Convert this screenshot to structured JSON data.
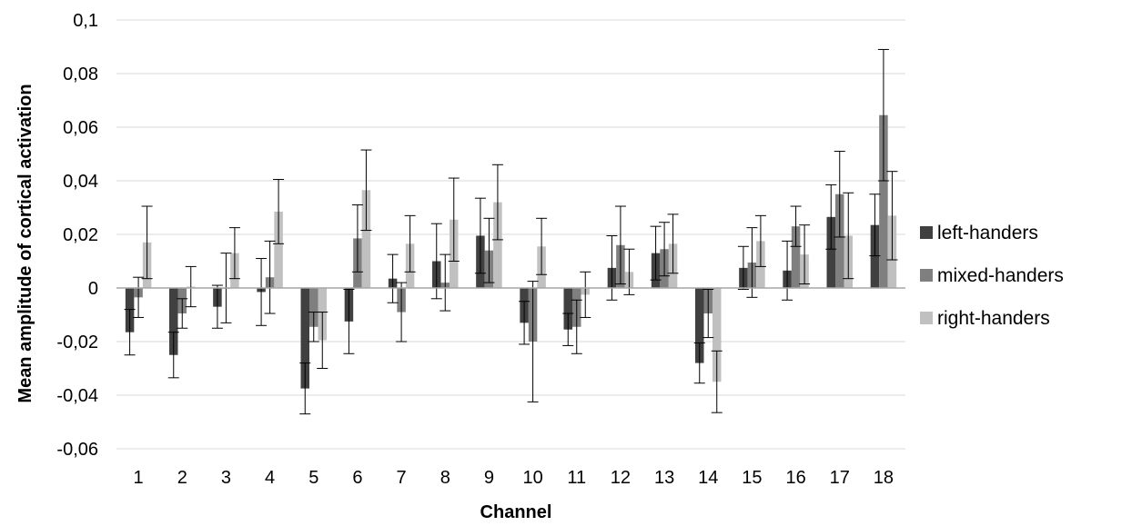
{
  "chart_data": {
    "type": "bar",
    "xlabel": "Channel",
    "ylabel": "Mean amplitude of cortical activation",
    "ylim": [
      -0.06,
      0.1
    ],
    "yticks": [
      {
        "value": 0.1,
        "label": "0,1"
      },
      {
        "value": 0.08,
        "label": "0,08"
      },
      {
        "value": 0.06,
        "label": "0,06"
      },
      {
        "value": 0.04,
        "label": "0,04"
      },
      {
        "value": 0.02,
        "label": "0,02"
      },
      {
        "value": 0,
        "label": "0"
      },
      {
        "value": -0.02,
        "label": "-0,02"
      },
      {
        "value": -0.04,
        "label": "-0,04"
      },
      {
        "value": -0.06,
        "label": "-0,06"
      }
    ],
    "categories": [
      "1",
      "2",
      "3",
      "4",
      "5",
      "6",
      "7",
      "8",
      "9",
      "10",
      "11",
      "12",
      "13",
      "14",
      "15",
      "16",
      "17",
      "18"
    ],
    "grid": true,
    "legend_position": "right",
    "series": [
      {
        "name": "left-handers",
        "color": "#404040",
        "values": [
          -0.0165,
          -0.025,
          -0.007,
          -0.0015,
          -0.0375,
          -0.0125,
          0.0035,
          0.01,
          0.0195,
          -0.013,
          -0.0155,
          0.0075,
          0.013,
          -0.028,
          0.0075,
          0.0065,
          0.0265,
          0.0235
        ],
        "errors": [
          0.0085,
          0.0085,
          0.008,
          0.0125,
          0.0095,
          0.012,
          0.009,
          0.014,
          0.014,
          0.008,
          0.006,
          0.012,
          0.01,
          0.0075,
          0.008,
          0.011,
          0.012,
          0.0115
        ]
      },
      {
        "name": "mixed-handers",
        "color": "#7f7f7f",
        "values": [
          -0.0035,
          -0.0095,
          0.0,
          0.004,
          -0.0145,
          0.0185,
          -0.009,
          0.002,
          0.014,
          -0.02,
          -0.0145,
          0.016,
          0.0145,
          -0.0095,
          0.0095,
          0.023,
          0.035,
          0.0645
        ],
        "errors": [
          0.0075,
          0.0055,
          0.013,
          0.0135,
          0.0055,
          0.0125,
          0.011,
          0.0105,
          0.012,
          0.0225,
          0.01,
          0.0145,
          0.01,
          0.009,
          0.013,
          0.0075,
          0.016,
          0.0245
        ]
      },
      {
        "name": "right-handers",
        "color": "#c0c0c0",
        "values": [
          0.017,
          0.0005,
          0.013,
          0.0285,
          -0.0195,
          0.0365,
          0.0165,
          0.0255,
          0.032,
          0.0155,
          -0.0025,
          0.006,
          0.0165,
          -0.035,
          0.0175,
          0.0125,
          0.0195,
          0.027
        ],
        "errors": [
          0.0135,
          0.0075,
          0.0095,
          0.012,
          0.0105,
          0.015,
          0.0105,
          0.0155,
          0.014,
          0.0105,
          0.0085,
          0.0085,
          0.011,
          0.0115,
          0.0095,
          0.011,
          0.016,
          0.0165
        ]
      }
    ]
  }
}
